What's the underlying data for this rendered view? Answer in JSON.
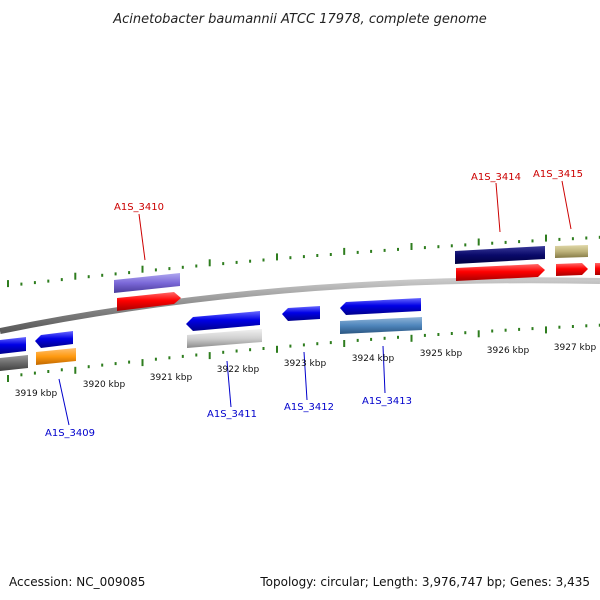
{
  "title": "Acinetobacter baumannii ATCC 17978, complete genome",
  "footer": {
    "accession": "Accession: NC_009085",
    "summary": "Topology: circular; Length: 3,976,747 bp; Genes: 3,435"
  },
  "ruler_labels": [
    "3919 kbp",
    "3920 kbp",
    "3921 kbp",
    "3922 kbp",
    "3923 kbp",
    "3924 kbp",
    "3925 kbp",
    "3926 kbp",
    "3927 kbp"
  ],
  "genes": [
    {
      "id": "A1S_3409",
      "color": "#0000cc"
    },
    {
      "id": "A1S_3410",
      "color": "#cc0000"
    },
    {
      "id": "A1S_3411",
      "color": "#0000cc"
    },
    {
      "id": "A1S_3412",
      "color": "#0000cc"
    },
    {
      "id": "A1S_3413",
      "color": "#0000cc"
    },
    {
      "id": "A1S_3414",
      "color": "#cc0000"
    },
    {
      "id": "A1S_3415",
      "color": "#cc0000"
    }
  ],
  "colors": {
    "backbone": "#808080",
    "tick": "#2e7d1e",
    "forward_gene": "#ff0000",
    "reverse_gene": "#1010e0"
  }
}
